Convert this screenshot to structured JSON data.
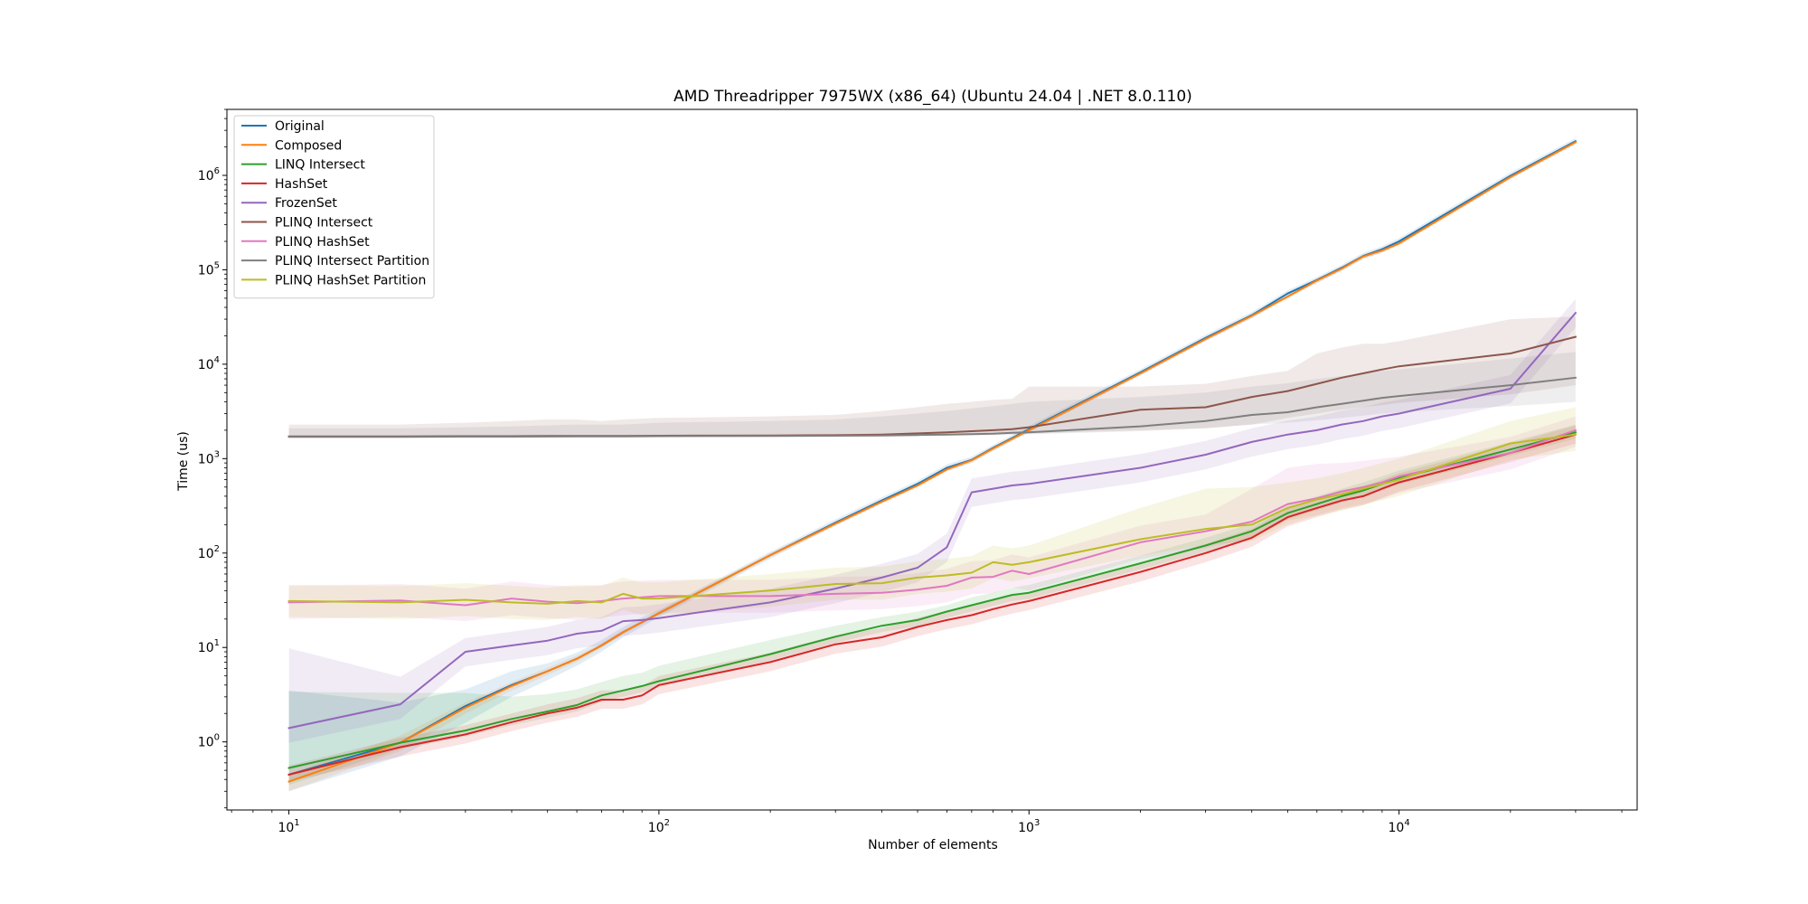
{
  "chart_data": {
    "type": "line",
    "title": "AMD Threadripper 7975WX (x86_64) (Ubuntu 24.04 | .NET 8.0.110)",
    "xlabel": "Number of elements",
    "ylabel": "Time (us)",
    "xscale": "log",
    "yscale": "log",
    "xlim": [
      6.8,
      44000
    ],
    "ylim": [
      0.19,
      5000000
    ],
    "grid": false,
    "legend_position": "top-left",
    "x_ticks": [
      {
        "value": 10,
        "base": "10",
        "exp": "1"
      },
      {
        "value": 100,
        "base": "10",
        "exp": "2"
      },
      {
        "value": 1000,
        "base": "10",
        "exp": "3"
      },
      {
        "value": 10000,
        "base": "10",
        "exp": "4"
      }
    ],
    "y_ticks": [
      {
        "value": 1,
        "base": "10",
        "exp": "0"
      },
      {
        "value": 10,
        "base": "10",
        "exp": "1"
      },
      {
        "value": 100,
        "base": "10",
        "exp": "2"
      },
      {
        "value": 1000,
        "base": "10",
        "exp": "3"
      },
      {
        "value": 10000,
        "base": "10",
        "exp": "4"
      },
      {
        "value": 100000,
        "base": "10",
        "exp": "5"
      },
      {
        "value": 1000000,
        "base": "10",
        "exp": "6"
      }
    ],
    "series": [
      {
        "name": "Original",
        "color": "#1f77b4",
        "x": [
          10,
          20,
          30,
          40,
          50,
          60,
          70,
          80,
          90,
          100,
          200,
          300,
          400,
          500,
          600,
          700,
          800,
          900,
          1000,
          2000,
          3000,
          4000,
          5000,
          6000,
          7000,
          8000,
          9000,
          10000,
          20000,
          30000
        ],
        "y": [
          0.45,
          0.98,
          2.4,
          4.0,
          5.6,
          7.6,
          10.5,
          14.5,
          18.5,
          23,
          95,
          210,
          360,
          540,
          800,
          970,
          1300,
          1650,
          2050,
          8200,
          19000,
          33000,
          56000,
          78000,
          105000,
          140000,
          165000,
          200000,
          990000,
          2300000
        ],
        "band_low": [
          0.3,
          0.7,
          1.6,
          3.0,
          4.5,
          6.4,
          9.0,
          12.8,
          16.5,
          21,
          87,
          195,
          335,
          505,
          740,
          900,
          1210,
          1540,
          1900,
          7600,
          17600,
          30500,
          52000,
          72000,
          97000,
          130000,
          152000,
          185000,
          920000,
          2140000
        ],
        "band_high": [
          3.5,
          2.6,
          3.6,
          5.6,
          6.8,
          8.8,
          12.0,
          16.5,
          21,
          25,
          103,
          228,
          390,
          585,
          870,
          1050,
          1400,
          1780,
          2220,
          8850,
          20500,
          35600,
          60500,
          84000,
          113000,
          151000,
          178000,
          216000,
          1070000,
          2480000
        ]
      },
      {
        "name": "Composed",
        "color": "#ff7f0e",
        "x": [
          10,
          20,
          30,
          40,
          50,
          60,
          70,
          80,
          90,
          100,
          200,
          300,
          400,
          500,
          600,
          700,
          800,
          900,
          1000,
          2000,
          3000,
          4000,
          5000,
          6000,
          7000,
          8000,
          9000,
          10000,
          20000,
          30000
        ],
        "y": [
          0.38,
          0.98,
          2.3,
          3.9,
          5.6,
          7.6,
          10.5,
          14.5,
          18.5,
          23,
          95,
          205,
          350,
          520,
          770,
          960,
          1280,
          1620,
          2000,
          8000,
          18500,
          32500,
          52000,
          77000,
          103000,
          138000,
          160000,
          190000,
          960000,
          2250000
        ],
        "band_low": [
          0.3,
          0.8,
          2.0,
          3.5,
          5.1,
          7.0,
          9.8,
          13.6,
          17.4,
          21.6,
          90,
          195,
          333,
          494,
          732,
          912,
          1216,
          1540,
          1900,
          7600,
          17600,
          30900,
          49400,
          73000,
          97800,
          131000,
          152000,
          180500,
          912000,
          2140000
        ],
        "band_high": [
          0.46,
          1.16,
          2.6,
          4.3,
          6.1,
          8.2,
          11.2,
          15.4,
          19.6,
          24.4,
          100,
          215,
          368,
          546,
          808,
          1008,
          1344,
          1700,
          2100,
          8400,
          19400,
          34100,
          54600,
          80800,
          108000,
          145000,
          168000,
          199500,
          1008000,
          2360000
        ]
      },
      {
        "name": "LINQ Intersect",
        "color": "#2ca02c",
        "x": [
          10,
          20,
          30,
          40,
          50,
          60,
          70,
          80,
          90,
          100,
          200,
          300,
          400,
          500,
          600,
          700,
          800,
          900,
          1000,
          2000,
          3000,
          4000,
          5000,
          6000,
          7000,
          8000,
          9000,
          10000,
          20000,
          30000
        ],
        "y": [
          0.53,
          0.98,
          1.32,
          1.75,
          2.1,
          2.45,
          3.1,
          3.5,
          3.9,
          4.4,
          8.5,
          13,
          17,
          19.5,
          24,
          28,
          32,
          36,
          38,
          78,
          120,
          170,
          265,
          330,
          400,
          460,
          540,
          620,
          1250,
          1900
        ],
        "band_low": [
          0.35,
          0.84,
          1.14,
          1.5,
          1.8,
          2.1,
          2.65,
          3.0,
          3.35,
          3.8,
          7.3,
          11.2,
          14.6,
          16.8,
          20.6,
          24,
          27.5,
          31,
          32.7,
          67,
          103,
          146,
          228,
          284,
          344,
          396,
          464,
          533,
          1075,
          1630
        ],
        "band_high": [
          3.4,
          3.3,
          3.3,
          3.0,
          3.2,
          3.6,
          4.3,
          5.0,
          5.4,
          6.4,
          12,
          17,
          21,
          24,
          28,
          34,
          38,
          43,
          46,
          94,
          145,
          205,
          320,
          400,
          480,
          560,
          650,
          750,
          1500,
          2300
        ]
      },
      {
        "name": "HashSet",
        "color": "#d62728",
        "x": [
          10,
          20,
          30,
          40,
          50,
          60,
          70,
          80,
          90,
          100,
          200,
          300,
          400,
          500,
          600,
          700,
          800,
          900,
          1000,
          2000,
          3000,
          4000,
          5000,
          6000,
          7000,
          8000,
          9000,
          10000,
          20000,
          30000
        ],
        "y": [
          0.45,
          0.88,
          1.2,
          1.62,
          2.0,
          2.3,
          2.8,
          2.8,
          3.1,
          4.0,
          7.0,
          10.8,
          12.8,
          16.5,
          19.5,
          22,
          25.5,
          28.5,
          31,
          63,
          100,
          145,
          240,
          300,
          360,
          400,
          480,
          560,
          1150,
          1800
        ],
        "band_low": [
          0.38,
          0.7,
          0.96,
          1.3,
          1.6,
          1.84,
          2.24,
          2.24,
          2.5,
          3.2,
          5.6,
          8.6,
          10.2,
          13.2,
          15.6,
          17.6,
          20.4,
          22.8,
          24.8,
          50,
          80,
          116,
          192,
          240,
          288,
          320,
          384,
          448,
          920,
          1440
        ],
        "band_high": [
          0.56,
          1.1,
          1.5,
          2.0,
          2.5,
          2.9,
          3.5,
          3.5,
          3.9,
          5.0,
          8.8,
          13.5,
          16,
          20.6,
          24.4,
          27.5,
          31.9,
          35.6,
          38.8,
          79,
          125,
          181,
          300,
          375,
          450,
          500,
          600,
          700,
          1440,
          2250
        ]
      },
      {
        "name": "FrozenSet",
        "color": "#9467bd",
        "x": [
          10,
          20,
          30,
          40,
          50,
          60,
          70,
          80,
          90,
          100,
          200,
          300,
          400,
          500,
          600,
          700,
          800,
          900,
          1000,
          2000,
          3000,
          4000,
          5000,
          6000,
          7000,
          8000,
          9000,
          10000,
          20000,
          30000
        ],
        "y": [
          1.4,
          2.5,
          9.0,
          10.5,
          11.8,
          14.0,
          15.0,
          19.0,
          19.5,
          20.5,
          30,
          42,
          55,
          70,
          115,
          440,
          480,
          520,
          540,
          800,
          1100,
          1500,
          1800,
          2000,
          2300,
          2500,
          2800,
          3000,
          5500,
          35000
        ],
        "band_low": [
          0.98,
          1.75,
          6.3,
          7.4,
          8.3,
          9.8,
          10.5,
          13.3,
          13.7,
          14.4,
          21,
          29.4,
          38.5,
          49,
          80.5,
          308,
          336,
          364,
          378,
          560,
          770,
          1050,
          1260,
          1400,
          1610,
          1750,
          1960,
          2100,
          3850,
          24500
        ],
        "band_high": [
          9.8,
          4.9,
          12.6,
          14.7,
          16.5,
          19.6,
          21,
          26.6,
          27.3,
          28.7,
          42,
          59,
          77,
          98,
          161,
          616,
          672,
          728,
          756,
          1120,
          1540,
          2100,
          2520,
          2800,
          3220,
          3500,
          3920,
          4200,
          7700,
          49000
        ]
      },
      {
        "name": "PLINQ Intersect",
        "color": "#8c564b",
        "x": [
          10,
          20,
          30,
          40,
          50,
          60,
          70,
          80,
          90,
          100,
          200,
          300,
          400,
          500,
          600,
          700,
          800,
          900,
          1000,
          2000,
          3000,
          4000,
          5000,
          6000,
          7000,
          8000,
          9000,
          10000,
          20000,
          30000
        ],
        "y": [
          1720,
          1720,
          1730,
          1730,
          1740,
          1740,
          1740,
          1740,
          1745,
          1750,
          1760,
          1770,
          1800,
          1850,
          1900,
          1950,
          2000,
          2050,
          2150,
          3300,
          3500,
          4500,
          5200,
          6200,
          7200,
          8000,
          8800,
          9500,
          13000,
          19500
        ],
        "band_low": [
          1680,
          1680,
          1690,
          1690,
          1700,
          1700,
          1700,
          1700,
          1700,
          1710,
          1720,
          1730,
          1750,
          1770,
          1790,
          1800,
          1810,
          1820,
          1840,
          2000,
          2100,
          2300,
          2700,
          3000,
          3300,
          3500,
          3700,
          3900,
          4800,
          6000
        ],
        "band_high": [
          2300,
          2300,
          2400,
          2500,
          2600,
          2600,
          2500,
          2600,
          2650,
          2700,
          2800,
          2900,
          3200,
          3500,
          3800,
          4000,
          4200,
          4300,
          5800,
          5800,
          6200,
          7500,
          8500,
          13000,
          15000,
          16500,
          16500,
          17500,
          30000,
          32000
        ]
      },
      {
        "name": "PLINQ HashSet",
        "color": "#e377c2",
        "x": [
          10,
          20,
          30,
          40,
          50,
          60,
          70,
          80,
          90,
          100,
          200,
          300,
          400,
          500,
          600,
          700,
          800,
          900,
          1000,
          2000,
          3000,
          4000,
          5000,
          6000,
          7000,
          8000,
          9000,
          10000,
          20000,
          30000
        ],
        "y": [
          30,
          31.5,
          28,
          33,
          30.5,
          29.5,
          31,
          33,
          34,
          35,
          35,
          37,
          38,
          41,
          45,
          55,
          56,
          65,
          60,
          130,
          170,
          215,
          330,
          380,
          450,
          500,
          560,
          650,
          1150,
          2000
        ],
        "band_low": [
          20,
          21,
          19,
          22,
          20.4,
          19.7,
          20.7,
          22,
          22.7,
          23.4,
          23.4,
          24.7,
          25.4,
          27.4,
          30,
          36.7,
          37.4,
          43.4,
          40,
          86.7,
          113,
          143,
          220,
          253,
          300,
          333,
          373,
          433,
          767,
          1333
        ],
        "band_high": [
          45,
          47,
          42,
          50,
          46,
          44,
          46,
          50,
          51,
          52,
          52,
          56,
          57,
          61,
          68,
          82,
          84,
          97,
          90,
          195,
          255,
          480,
          800,
          880,
          900,
          950,
          1000,
          1050,
          1700,
          2800
        ]
      },
      {
        "name": "PLINQ Intersect Partition",
        "color": "#7f7f7f",
        "x": [
          10,
          20,
          30,
          40,
          50,
          60,
          70,
          80,
          90,
          100,
          200,
          300,
          400,
          500,
          600,
          700,
          800,
          900,
          1000,
          2000,
          3000,
          4000,
          5000,
          6000,
          7000,
          8000,
          9000,
          10000,
          20000,
          30000
        ],
        "y": [
          1700,
          1700,
          1710,
          1710,
          1715,
          1720,
          1720,
          1720,
          1725,
          1730,
          1740,
          1750,
          1760,
          1780,
          1800,
          1820,
          1840,
          1880,
          1900,
          2200,
          2500,
          2900,
          3100,
          3500,
          3800,
          4100,
          4400,
          4600,
          6000,
          7200
        ],
        "band_low": [
          1660,
          1660,
          1670,
          1670,
          1675,
          1680,
          1680,
          1680,
          1685,
          1690,
          1700,
          1710,
          1720,
          1735,
          1750,
          1765,
          1780,
          1800,
          1810,
          1950,
          2100,
          2300,
          2400,
          2550,
          2700,
          2850,
          3000,
          3100,
          3600,
          4000
        ],
        "band_high": [
          2100,
          2100,
          2150,
          2200,
          2250,
          2300,
          2300,
          2300,
          2350,
          2400,
          2500,
          2600,
          2800,
          3000,
          3200,
          3400,
          3600,
          3800,
          4000,
          4500,
          5000,
          5800,
          6300,
          7000,
          7500,
          8000,
          8500,
          8800,
          11500,
          13500
        ]
      },
      {
        "name": "PLINQ HashSet Partition",
        "color": "#bcbd22",
        "x": [
          10,
          20,
          30,
          40,
          50,
          60,
          70,
          80,
          90,
          100,
          200,
          300,
          400,
          500,
          600,
          700,
          800,
          900,
          1000,
          2000,
          3000,
          4000,
          5000,
          6000,
          7000,
          8000,
          9000,
          10000,
          20000,
          30000
        ],
        "y": [
          31,
          30,
          32,
          30,
          29,
          31,
          30,
          37,
          33,
          33,
          40,
          47,
          48,
          55,
          58,
          62,
          80,
          75,
          80,
          140,
          180,
          200,
          300,
          370,
          420,
          480,
          540,
          600,
          1450,
          1800
        ],
        "band_low": [
          21,
          20,
          21.5,
          20,
          19.5,
          21,
          20,
          25,
          22,
          22,
          27,
          32,
          32,
          37,
          39,
          42,
          54,
          50,
          54,
          94,
          121,
          134,
          201,
          248,
          281,
          322,
          362,
          402,
          972,
          1206
        ],
        "band_high": [
          46,
          45,
          48,
          45,
          43,
          46,
          45,
          55,
          49,
          49,
          60,
          70,
          72,
          82,
          87,
          93,
          120,
          112,
          120,
          300,
          480,
          500,
          560,
          620,
          700,
          800,
          900,
          1000,
          2500,
          3500
        ]
      }
    ]
  }
}
